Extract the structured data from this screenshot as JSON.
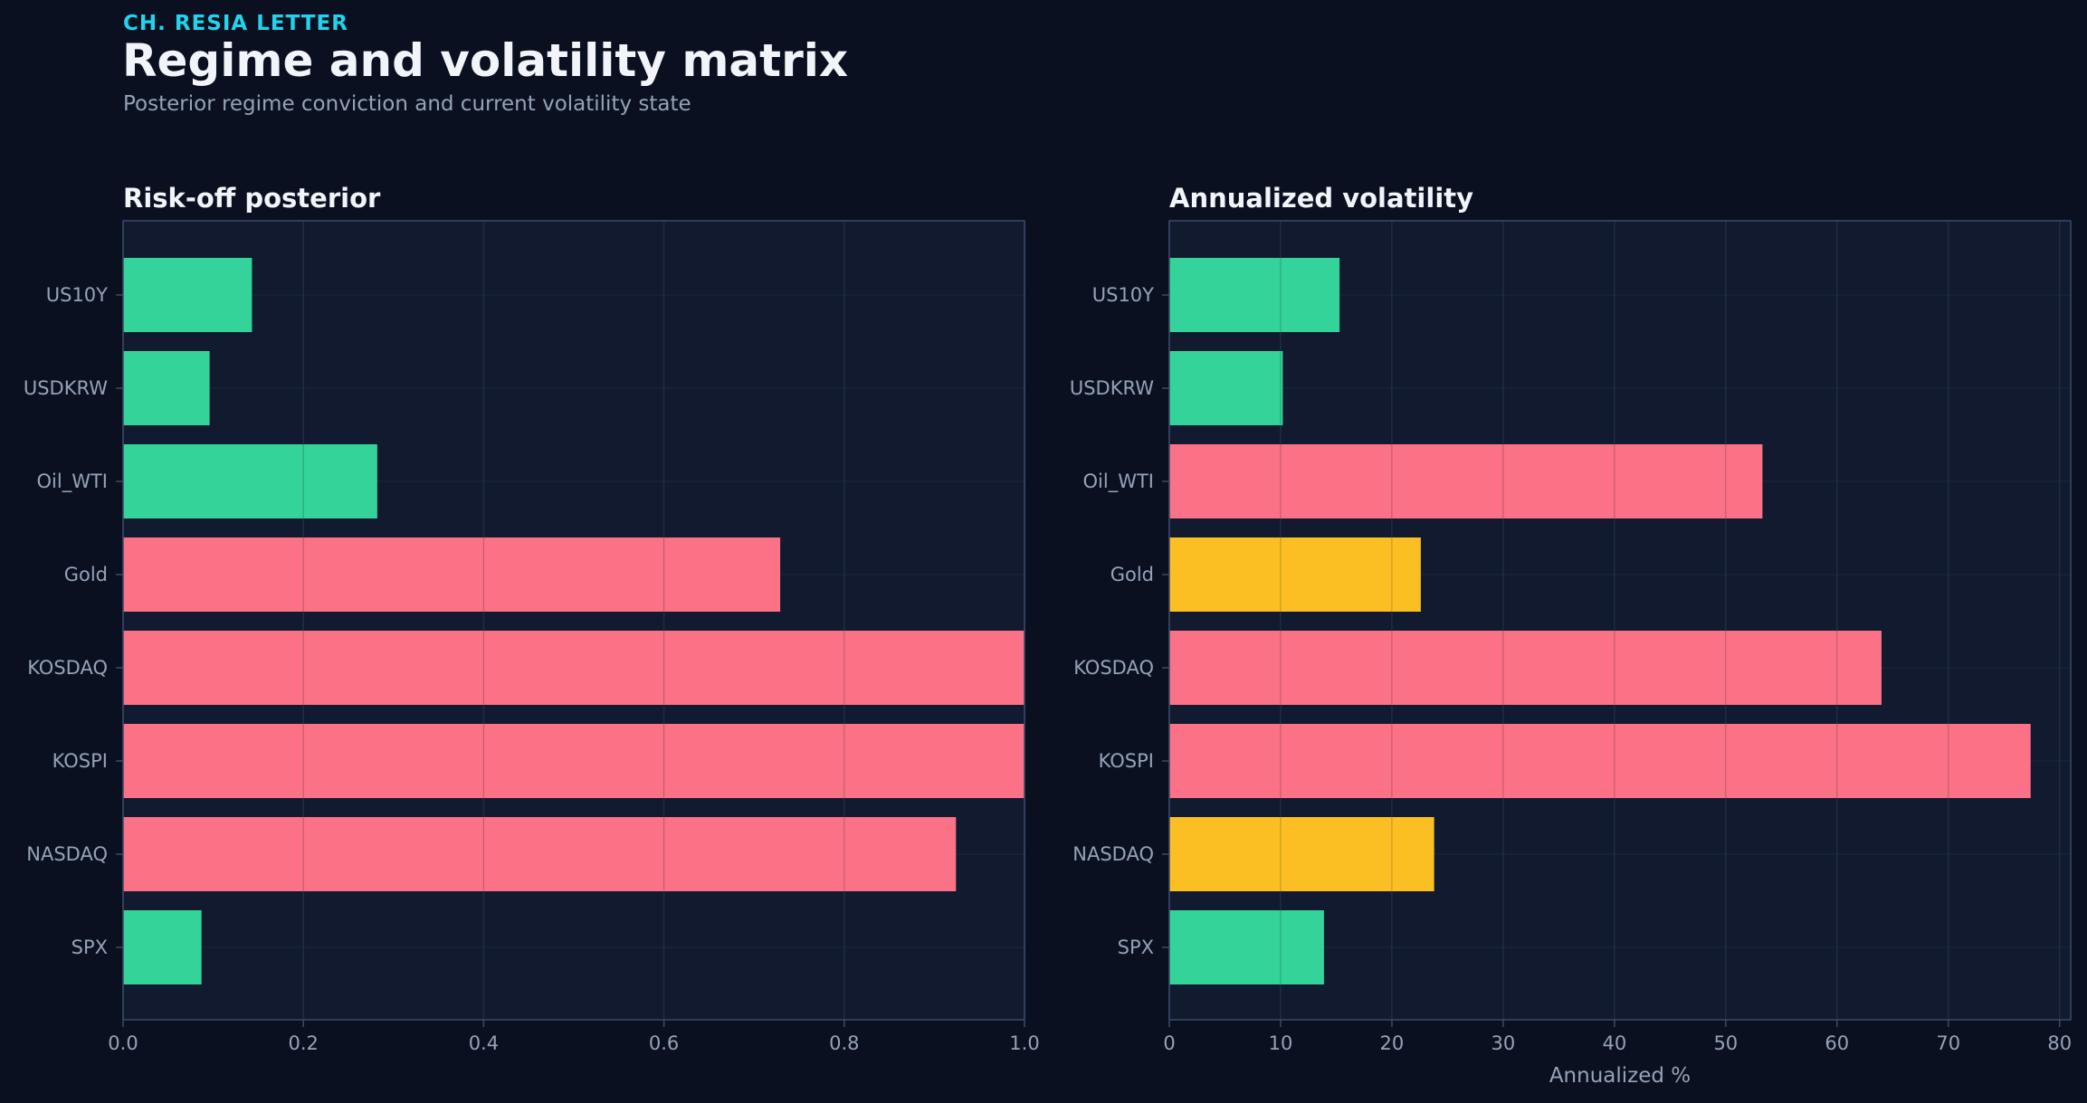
{
  "header": {
    "kicker": "CH. RESIA LETTER",
    "title": "Regime and volatility matrix",
    "subtitle": "Posterior regime conviction and current volatility state"
  },
  "colors": {
    "calm": "#34d399",
    "elevated": "#fbbf24",
    "stressed": "#fb7185",
    "panel_bg": "#111a2e",
    "grid": "#26324a",
    "frame": "#3a4a6a"
  },
  "chart_data": [
    {
      "type": "bar",
      "orientation": "horizontal",
      "title": "Risk-off posterior",
      "xlabel": "",
      "ylabel": "",
      "categories": [
        "US10Y",
        "USDKRW",
        "Oil_WTI",
        "Gold",
        "KOSDAQ",
        "KOSPI",
        "NASDAQ",
        "SPX"
      ],
      "values": [
        0.143,
        0.096,
        0.282,
        0.729,
        1.0,
        1.0,
        0.924,
        0.087
      ],
      "bar_colors": [
        "calm",
        "calm",
        "calm",
        "stressed",
        "stressed",
        "stressed",
        "stressed",
        "calm"
      ],
      "xlim": [
        0,
        1.0
      ],
      "xticks": [
        0.0,
        0.2,
        0.4,
        0.6,
        0.8,
        1.0
      ],
      "xtick_labels": [
        "0.0",
        "0.2",
        "0.4",
        "0.6",
        "0.8",
        "1.0"
      ],
      "grid": true
    },
    {
      "type": "bar",
      "orientation": "horizontal",
      "title": "Annualized volatility",
      "xlabel": "Annualized %",
      "ylabel": "",
      "categories": [
        "US10Y",
        "USDKRW",
        "Oil_WTI",
        "Gold",
        "KOSDAQ",
        "KOSPI",
        "NASDAQ",
        "SPX"
      ],
      "values": [
        15.3,
        10.2,
        53.3,
        22.6,
        64.0,
        77.4,
        23.8,
        13.9
      ],
      "bar_colors": [
        "calm",
        "calm",
        "stressed",
        "elevated",
        "stressed",
        "stressed",
        "elevated",
        "calm"
      ],
      "xlim": [
        0,
        81
      ],
      "xticks": [
        0,
        10,
        20,
        30,
        40,
        50,
        60,
        70,
        80
      ],
      "xtick_labels": [
        "0",
        "10",
        "20",
        "30",
        "40",
        "50",
        "60",
        "70",
        "80"
      ],
      "grid": true
    }
  ]
}
